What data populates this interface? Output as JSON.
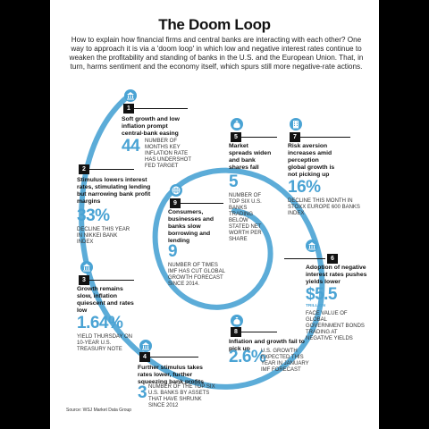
{
  "title": "The Doom Loop",
  "intro": "How to explain how financial firms and central banks are interacting with each other? One way to approach it is via a 'doom loop' in which low and negative interest rates continue to weaken the profitability and standing of banks in the U.S. and the European Union. That, in turn, harms sentiment and the economy itself, which spurs still more negative-rate actions.",
  "colors": {
    "accent": "#4aa3d4",
    "ink": "#111111",
    "background": "#ffffff"
  },
  "steps": [
    {
      "number": "1",
      "icon": "bank-building-icon",
      "heading": "Soft growth and low inflation prompt central-bank easing",
      "figure": "44",
      "description": "Number of months key inflation rate has undershot Fed target"
    },
    {
      "number": "2",
      "icon": "bank-building-icon",
      "heading": "Stimulus lowers interest rates, stimulating lending but narrowing bank profit margins",
      "figure": "33%",
      "description": "Decline this year in Nikkei bank index"
    },
    {
      "number": "3",
      "icon": "bank-building-icon",
      "heading": "Growth remains slow, inflation quiescent and rates low",
      "figure": "1.64%",
      "description": "Yield Thursday on 10-year U.S. Treasury note"
    },
    {
      "number": "4",
      "icon": "bank-building-icon",
      "heading": "Further stimulus takes rates lower, further squeezing bank profits",
      "figure": "3",
      "description": "Number of the top six U.S. banks by assets that have shrunk since 2012"
    },
    {
      "number": "5",
      "icon": "money-bag-icon",
      "heading": "Market spreads widen and bank shares fall",
      "figure": "5",
      "description": "Number of top six U.S. banks trading below stated net worth per share"
    },
    {
      "number": "6",
      "icon": "bank-building-icon",
      "heading": "Adoption of negative interest rates pushes yields lower",
      "figure": "$5.5",
      "unit": "trillion",
      "description": "Face value of global government bonds trading at negative yields"
    },
    {
      "number": "7",
      "icon": "building-icon",
      "heading": "Risk aversion increases amid perception global growth is not picking up",
      "figure": "16%",
      "description": "Decline this month in Stoxx Europe 600 Banks index"
    },
    {
      "number": "8",
      "icon": "money-bag-icon",
      "heading": "Inflation and growth fail to pick up",
      "figure": "2.6%",
      "description": "U.S. growth expected this year in January IMF forecast"
    },
    {
      "number": "9",
      "icon": "globe-icon",
      "heading": "Consumers, businesses and banks slow borrowing and lending",
      "figure": "9",
      "description": "Number of times IMF has cut global growth forecast since 2014."
    }
  ],
  "source": "Source: WSJ Market Data Group"
}
